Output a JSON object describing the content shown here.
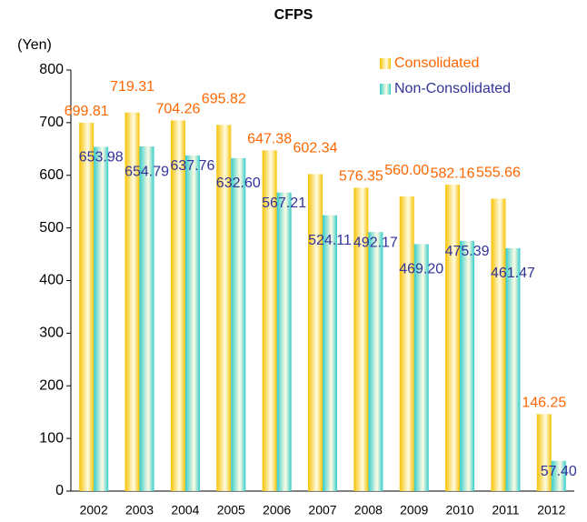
{
  "chart_data": {
    "type": "bar",
    "title": "CFPS",
    "y_label": "(Yen)",
    "categories": [
      "2002",
      "2003",
      "2004",
      "2005",
      "2006",
      "2007",
      "2008",
      "2009",
      "2010",
      "2011",
      "2012"
    ],
    "series": [
      {
        "name": "Consolidated",
        "color": "#f5c200",
        "label_color": "#ff6600",
        "values": [
          699.81,
          719.31,
          704.26,
          695.82,
          647.38,
          602.34,
          576.35,
          560.0,
          582.16,
          555.66,
          146.25
        ],
        "value_labels": [
          "699.81",
          "719.31",
          "704.26",
          "695.82",
          "647.38",
          "602.34",
          "576.35",
          "560.00",
          "582.16",
          "555.66",
          "146.25"
        ]
      },
      {
        "name": "Non-Consolidated",
        "color": "#33cccc",
        "label_color": "#333399",
        "values": [
          653.98,
          654.79,
          637.76,
          632.6,
          567.21,
          524.11,
          492.17,
          469.2,
          475.39,
          461.47,
          57.4
        ],
        "value_labels": [
          "653.98",
          "654.79",
          "637.76",
          "632.60",
          "567.21",
          "524.11",
          "492.17",
          "469.20",
          "475.39",
          "461.47",
          "57.40"
        ]
      }
    ],
    "ylim": [
      0,
      800
    ],
    "yticks": [
      0,
      100,
      200,
      300,
      400,
      500,
      600,
      700,
      800
    ]
  }
}
